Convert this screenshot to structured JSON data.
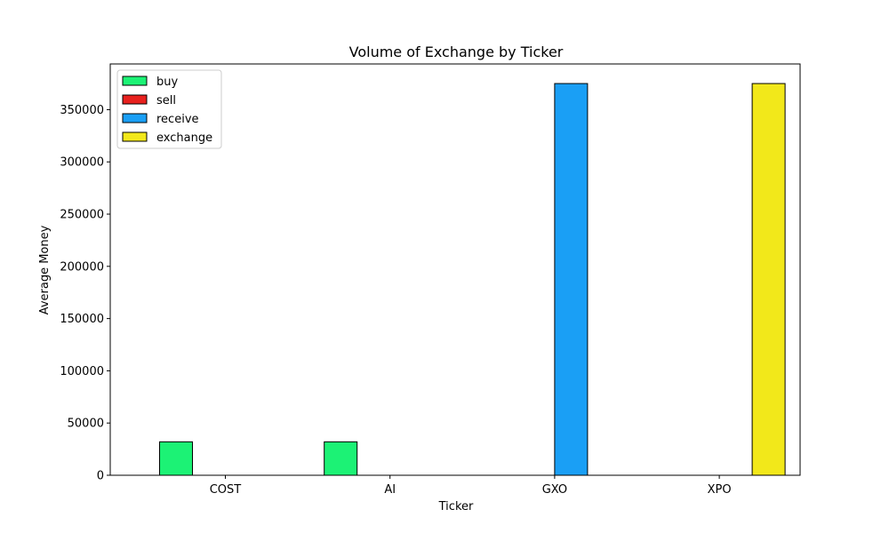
{
  "chart_data": {
    "type": "bar",
    "title": "Volume of Exchange by Ticker",
    "xlabel": "Ticker",
    "ylabel": "Average Money",
    "categories": [
      "COST",
      "AI",
      "GXO",
      "XPO"
    ],
    "series": [
      {
        "name": "buy",
        "color": "#1cf275",
        "values": [
          32000,
          32000,
          0,
          0
        ]
      },
      {
        "name": "sell",
        "color": "#e8211e",
        "values": [
          0,
          0,
          0,
          0
        ]
      },
      {
        "name": "receive",
        "color": "#1a9ff5",
        "values": [
          0,
          0,
          375000,
          0
        ]
      },
      {
        "name": "exchange",
        "color": "#f2e81a",
        "values": [
          0,
          0,
          0,
          375000
        ]
      }
    ],
    "ylim": [
      0,
      393750
    ],
    "yticks": [
      0,
      50000,
      100000,
      150000,
      200000,
      250000,
      300000,
      350000
    ],
    "grid": false,
    "legend_position": "upper-left"
  }
}
